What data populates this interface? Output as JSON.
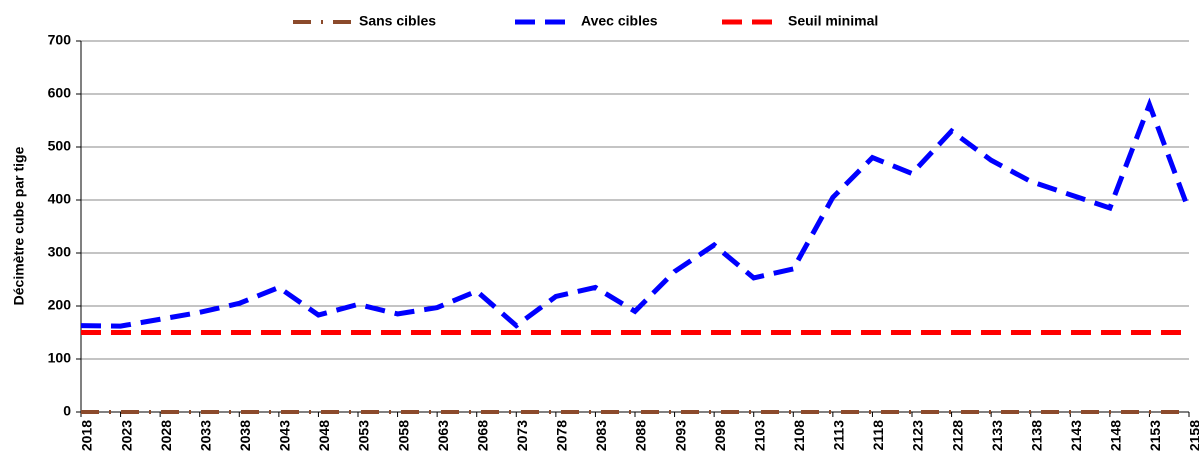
{
  "chart_data": {
    "type": "line",
    "y_label": "Décimètre cube par tige",
    "categories": [
      "2018",
      "2023",
      "2028",
      "2033",
      "2038",
      "2043",
      "2048",
      "2053",
      "2058",
      "2063",
      "2068",
      "2073",
      "2078",
      "2083",
      "2088",
      "2093",
      "2098",
      "2103",
      "2108",
      "2113",
      "2118",
      "2123",
      "2128",
      "2133",
      "2138",
      "2143",
      "2148",
      "2153",
      "2158"
    ],
    "series": [
      {
        "name": "Sans cibles",
        "color": "#8b4a2b",
        "line_style": "dashdot",
        "values": [
          0,
          0,
          0,
          0,
          0,
          0,
          0,
          0,
          0,
          0,
          0,
          0,
          0,
          0,
          0,
          0,
          0,
          0,
          0,
          0,
          0,
          0,
          0,
          0,
          0,
          0,
          0,
          0,
          0
        ]
      },
      {
        "name": "Avec cibles",
        "color": "#0000ff",
        "line_style": "dash",
        "values": [
          163,
          162,
          175,
          188,
          205,
          235,
          183,
          203,
          185,
          197,
          228,
          163,
          218,
          235,
          190,
          265,
          315,
          253,
          270,
          405,
          480,
          450,
          530,
          475,
          435,
          410,
          385,
          580,
          380
        ]
      },
      {
        "name": "Seuil minimal",
        "color": "#ff0000",
        "line_style": "dash",
        "values": [
          150,
          150,
          150,
          150,
          150,
          150,
          150,
          150,
          150,
          150,
          150,
          150,
          150,
          150,
          150,
          150,
          150,
          150,
          150,
          150,
          150,
          150,
          150,
          150,
          150,
          150,
          150,
          150,
          150
        ]
      }
    ],
    "ylim": [
      0,
      700
    ],
    "yticks": [
      0,
      100,
      200,
      300,
      400,
      500,
      600,
      700
    ],
    "grid": true,
    "legend": "top"
  }
}
